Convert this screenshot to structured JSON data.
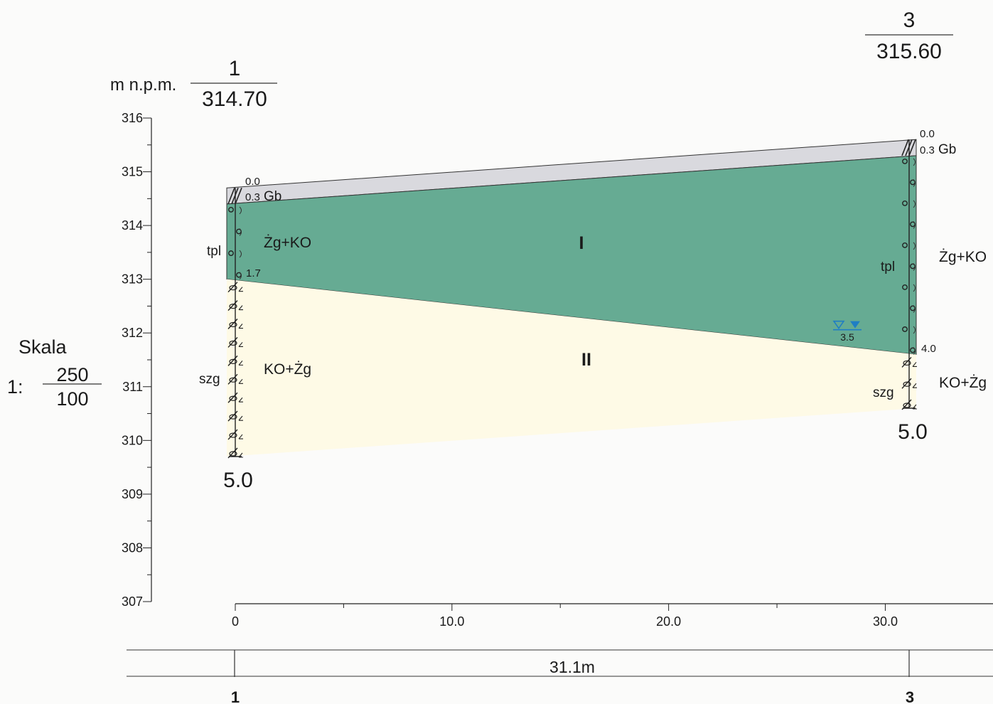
{
  "header": {
    "unit_label": "m n.p.m."
  },
  "scale": {
    "title": "Skala",
    "prefix": "1:",
    "horizontal": "250",
    "vertical": "100"
  },
  "colors": {
    "fill_layer": "#d9d9de",
    "layer_I": "#66ab93",
    "layer_II": "#fefae6",
    "water": "#1f7ec4"
  },
  "chart_data": {
    "type": "geological-cross-section",
    "y_axis": {
      "min": 307,
      "max": 316,
      "tick_labels": [
        "316",
        "315",
        "314",
        "313",
        "312",
        "311",
        "310",
        "309",
        "308",
        "307"
      ]
    },
    "x_axis": {
      "min": 0,
      "max": 31.1,
      "tick_labels": [
        "0",
        "10.0",
        "20.0",
        "30.0"
      ]
    },
    "boreholes": [
      {
        "id": "1",
        "distance": 0,
        "elevation": "314.70",
        "top_depth": "0.0",
        "fill_depth_label": "0.3",
        "fill_code": "Gb",
        "layer_I_bottom": "1.7",
        "final_depth": "5.0",
        "label_upper": "tpl",
        "label_lower": "szg",
        "soil_upper": "Żg+KO",
        "soil_lower": "KO+Żg"
      },
      {
        "id": "3",
        "distance": 31.1,
        "elevation": "315.60",
        "top_depth": "0.0",
        "fill_depth_label": "0.3",
        "fill_code": "Gb",
        "layer_I_bottom": "4.0",
        "water_level": "3.5",
        "final_depth": "5.0",
        "label_upper": "tpl",
        "label_lower": "szg",
        "soil_upper": "Żg+KO",
        "soil_lower": "KO+Żg"
      }
    ],
    "layers": [
      {
        "id": "I",
        "label": "I"
      },
      {
        "id": "II",
        "label": "II"
      }
    ],
    "total_distance": "31.1m"
  }
}
